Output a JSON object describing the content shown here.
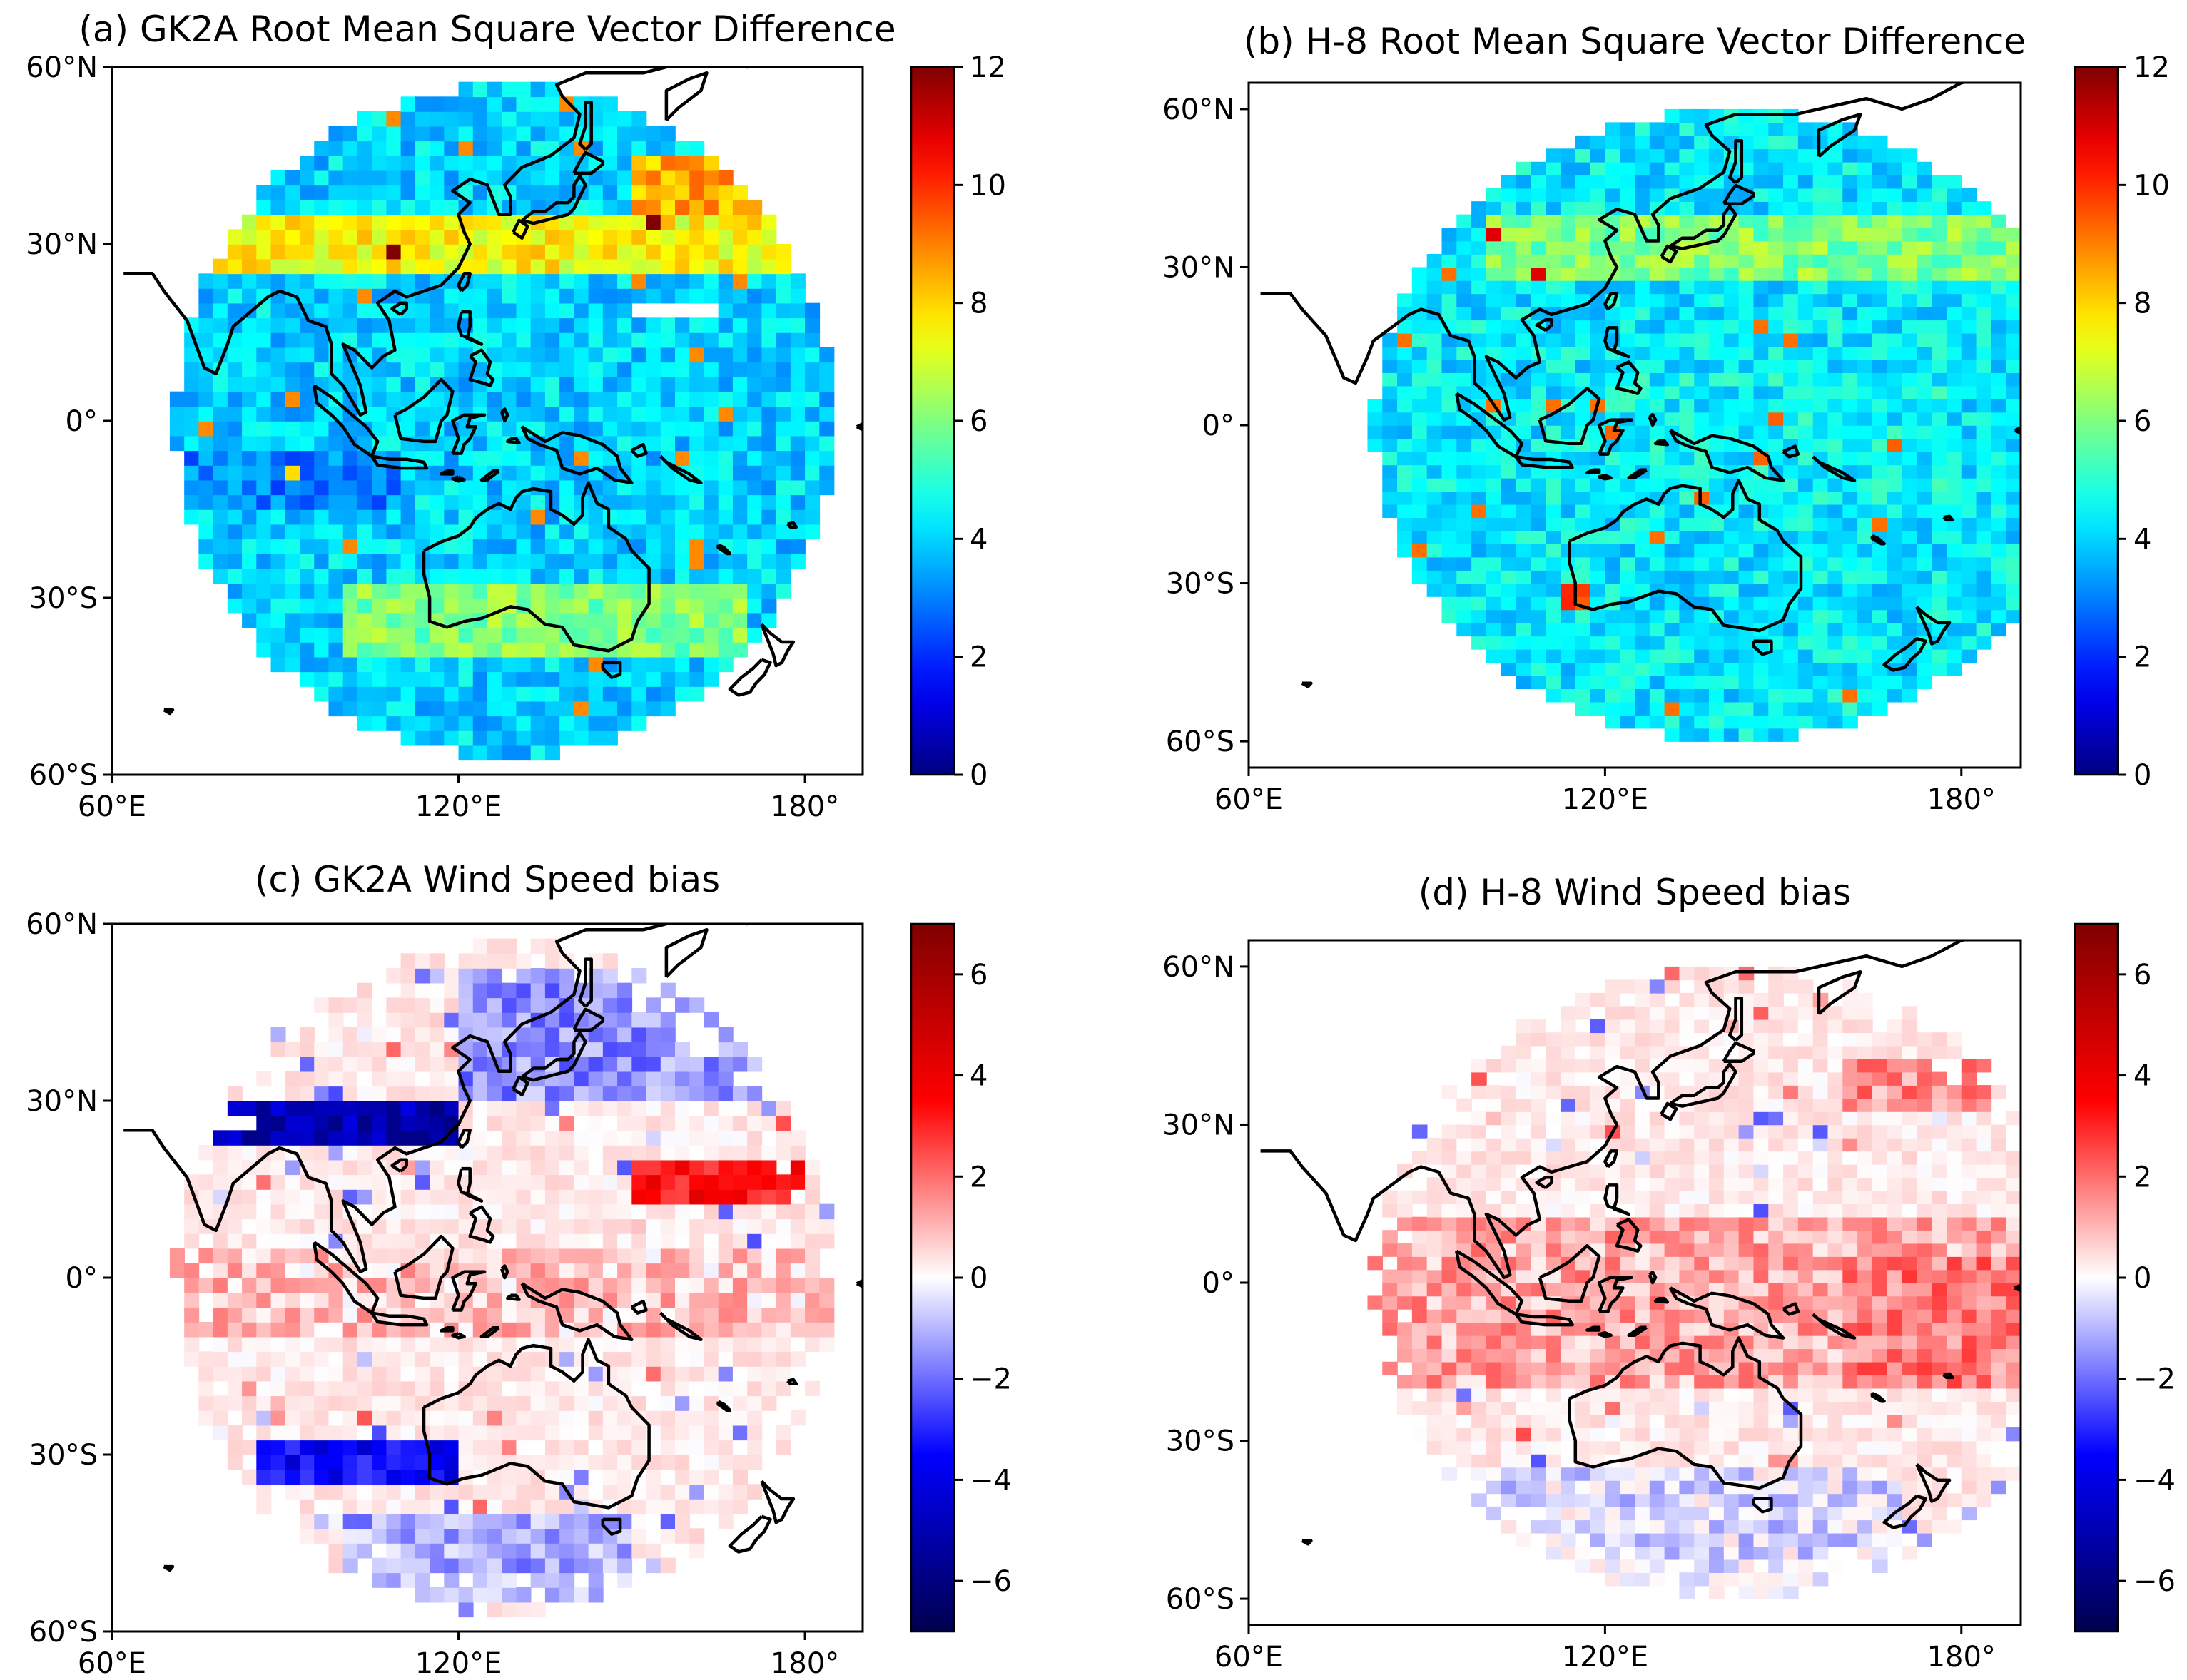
{
  "chart_data": [
    {
      "type": "heatmap",
      "title": "(a) GK2A Root Mean Square Vector Difference",
      "satellite": "GK2A",
      "variable": "RMSVD",
      "xlim": [
        60,
        190
      ],
      "ylim": [
        -60,
        60
      ],
      "xticks": [
        {
          "value": 60,
          "label": "60°E"
        },
        {
          "value": 120,
          "label": "120°E"
        },
        {
          "value": 180,
          "label": "180°"
        }
      ],
      "yticks": [
        {
          "value": 60,
          "label": "60°N"
        },
        {
          "value": 30,
          "label": "30°N"
        },
        {
          "value": 0,
          "label": "0°"
        },
        {
          "value": -30,
          "label": "30°S"
        },
        {
          "value": -60,
          "label": "60°S"
        }
      ],
      "colorbar": {
        "colormap": "jet",
        "vmin": 0,
        "vmax": 12,
        "ticks": [
          "0",
          "2",
          "4",
          "6",
          "8",
          "10",
          "12"
        ]
      },
      "grid_resolution_deg": 2.5,
      "disk_center": [
        128,
        0
      ],
      "disk_radius_deg": 57,
      "background_value": 4.0,
      "features": [
        {
          "region": "mid-latitude jet band",
          "lon": [
            75,
            180
          ],
          "lat": [
            25,
            35
          ],
          "value": 7.5
        },
        {
          "region": "NW Pacific jet maximum",
          "lon": [
            150,
            175
          ],
          "lat": [
            35,
            45
          ],
          "value": 8.5
        },
        {
          "region": "Southern Australia band",
          "lon": [
            100,
            170
          ],
          "lat": [
            -40,
            -28
          ],
          "value": 6.0
        },
        {
          "region": "Tropical Indian Ocean",
          "lon": [
            70,
            110
          ],
          "lat": [
            -15,
            -5
          ],
          "value": 3.0
        }
      ],
      "missing_cells": [
        {
          "lon": [
            150,
            165
          ],
          "lat": [
            18,
            21
          ]
        },
        {
          "lon": [
            99,
            105
          ],
          "lat": [
            -26,
            -24
          ]
        }
      ]
    },
    {
      "type": "heatmap",
      "title": "(b) H-8 Root Mean Square Vector Difference",
      "satellite": "H-8",
      "variable": "RMSVD",
      "xlim": [
        60,
        190
      ],
      "ylim": [
        -65,
        65
      ],
      "xticks": [
        {
          "value": 60,
          "label": "60°E"
        },
        {
          "value": 120,
          "label": "120°E"
        },
        {
          "value": 180,
          "label": "180°"
        }
      ],
      "yticks": [
        {
          "value": 60,
          "label": "60°N"
        },
        {
          "value": 30,
          "label": "30°N"
        },
        {
          "value": 0,
          "label": "0°"
        },
        {
          "value": -30,
          "label": "30°S"
        },
        {
          "value": -60,
          "label": "60°S"
        }
      ],
      "colorbar": {
        "colormap": "jet",
        "vmin": 0,
        "vmax": 12,
        "ticks": [
          "0",
          "2",
          "4",
          "6",
          "8",
          "10",
          "12"
        ]
      },
      "grid_resolution_deg": 2.5,
      "disk_center": [
        141,
        0
      ],
      "disk_radius_deg": 60,
      "background_value": 4.3,
      "features": [
        {
          "region": "mid-latitude band",
          "lon": [
            100,
            190
          ],
          "lat": [
            28,
            40
          ],
          "value": 6.0
        },
        {
          "region": "Tropical West Pacific",
          "lon": [
            120,
            180
          ],
          "lat": [
            -15,
            10
          ],
          "value": 4.5
        },
        {
          "region": "SW Australia maximum",
          "lon": [
            113,
            118
          ],
          "lat": [
            -34,
            -30
          ],
          "value": 10.0
        }
      ]
    },
    {
      "type": "heatmap",
      "title": "(c) GK2A Wind Speed bias",
      "satellite": "GK2A",
      "variable": "Wind speed bias",
      "xlim": [
        60,
        190
      ],
      "ylim": [
        -60,
        60
      ],
      "xticks": [
        {
          "value": 60,
          "label": "60°E"
        },
        {
          "value": 120,
          "label": "120°E"
        },
        {
          "value": 180,
          "label": "180°"
        }
      ],
      "yticks": [
        {
          "value": 60,
          "label": "60°N"
        },
        {
          "value": 30,
          "label": "30°N"
        },
        {
          "value": 0,
          "label": "0°"
        },
        {
          "value": -30,
          "label": "30°S"
        },
        {
          "value": -60,
          "label": "60°S"
        }
      ],
      "colorbar": {
        "colormap": "seismic",
        "vmin": -7,
        "vmax": 7,
        "ticks": [
          "−6",
          "−4",
          "−2",
          "0",
          "2",
          "4",
          "6"
        ]
      },
      "grid_resolution_deg": 2.5,
      "disk_center": [
        128,
        0
      ],
      "disk_radius_deg": 57,
      "background_value": 0.3,
      "features": [
        {
          "region": "Northern India / Tibet",
          "lon": [
            75,
            120
          ],
          "lat": [
            22,
            30
          ],
          "value": -5.0
        },
        {
          "region": "Southern Ocean south of Australia",
          "lon": [
            85,
            120
          ],
          "lat": [
            -35,
            -28
          ],
          "value": -3.5
        },
        {
          "region": "Southern Ocean far south",
          "lon": [
            100,
            150
          ],
          "lat": [
            -55,
            -40
          ],
          "value": -1.2
        },
        {
          "region": "North Pacific",
          "lon": [
            120,
            175
          ],
          "lat": [
            30,
            52
          ],
          "value": -1.5
        },
        {
          "region": "Subtropical NW Pacific",
          "lon": [
            150,
            180
          ],
          "lat": [
            13,
            20
          ],
          "value": 3.5
        },
        {
          "region": "Equatorial band",
          "lon": [
            70,
            185
          ],
          "lat": [
            -10,
            5
          ],
          "value": 0.8
        }
      ]
    },
    {
      "type": "heatmap",
      "title": "(d) H-8 Wind Speed bias",
      "satellite": "H-8",
      "variable": "Wind speed bias",
      "xlim": [
        60,
        190
      ],
      "ylim": [
        -65,
        65
      ],
      "xticks": [
        {
          "value": 60,
          "label": "60°E"
        },
        {
          "value": 120,
          "label": "120°E"
        },
        {
          "value": 180,
          "label": "180°"
        }
      ],
      "yticks": [
        {
          "value": 60,
          "label": "60°N"
        },
        {
          "value": 30,
          "label": "30°N"
        },
        {
          "value": 0,
          "label": "0°"
        },
        {
          "value": -30,
          "label": "30°S"
        },
        {
          "value": -60,
          "label": "60°S"
        }
      ],
      "colorbar": {
        "colormap": "seismic",
        "vmin": -7,
        "vmax": 7,
        "ticks": [
          "−6",
          "−4",
          "−2",
          "0",
          "2",
          "4",
          "6"
        ]
      },
      "grid_resolution_deg": 2.5,
      "disk_center": [
        141,
        0
      ],
      "disk_radius_deg": 60,
      "background_value": 0.3,
      "features": [
        {
          "region": "Tropical belt",
          "lon": [
            80,
            190
          ],
          "lat": [
            -20,
            12
          ],
          "value": 1.2
        },
        {
          "region": "Central tropical Pacific",
          "lon": [
            160,
            190
          ],
          "lat": [
            -20,
            5
          ],
          "value": 1.8
        },
        {
          "region": "North Pacific",
          "lon": [
            160,
            185
          ],
          "lat": [
            32,
            42
          ],
          "value": 1.5
        },
        {
          "region": "Southern Ocean",
          "lon": [
            90,
            170
          ],
          "lat": [
            -60,
            -35
          ],
          "value": -0.5
        }
      ]
    }
  ],
  "coastline_features": [
    "Asia",
    "Japan",
    "Korea",
    "Philippines",
    "Borneo",
    "Sumatra",
    "Java",
    "Sulawesi",
    "New Guinea",
    "Australia",
    "Tasmania",
    "New Zealand"
  ]
}
